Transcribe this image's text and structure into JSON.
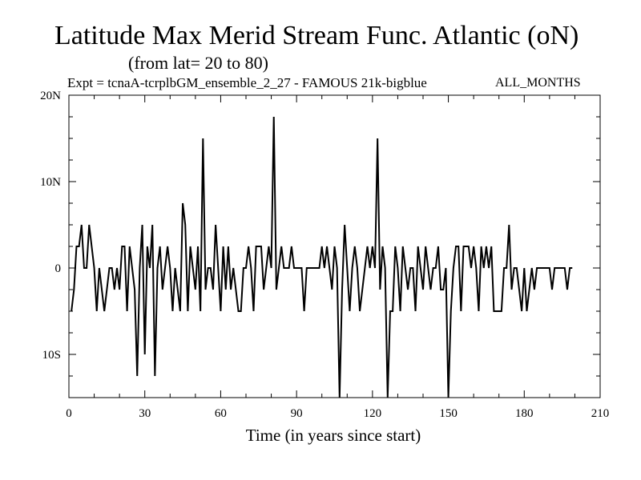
{
  "chart_data": {
    "type": "line",
    "title": "Latitude Max Merid Stream Func. Atlantic (oN)",
    "subtitle": "(from lat= 20 to 80)",
    "experiment": "Expt = tcnaA-tcrplbGM_ensemble_2_27 - FAMOUS 21k-bigblue",
    "months_label": "ALL_MONTHS",
    "xlabel": "Time (in years since start)",
    "ylabel": "",
    "xlim": [
      0,
      210
    ],
    "ylim": [
      -15,
      20
    ],
    "x_ticks": [
      0,
      30,
      60,
      90,
      120,
      150,
      180,
      210
    ],
    "x_tick_labels": [
      "0",
      "30",
      "60",
      "90",
      "120",
      "150",
      "180",
      "210"
    ],
    "y_ticks": [
      -10,
      0,
      10,
      20
    ],
    "y_tick_labels": [
      "10S",
      "0",
      "10N",
      "20N"
    ],
    "grid": false,
    "color": "#000000",
    "series": [
      {
        "x_start": 1,
        "x_step": 1,
        "values": [
          -5,
          -2.5,
          2.5,
          2.5,
          5,
          0,
          0,
          5,
          2.5,
          0,
          -5,
          0,
          -2.5,
          -5,
          -2.5,
          0,
          0,
          -2.5,
          0,
          -2.5,
          2.5,
          2.5,
          -5,
          2.5,
          0,
          -2.5,
          -12.5,
          0,
          5,
          -10,
          2.5,
          0,
          5,
          -12.5,
          0,
          2.5,
          -2.5,
          0,
          2.5,
          0,
          -5,
          0,
          -2.5,
          -5,
          7.5,
          5,
          -5,
          2.5,
          0,
          -2.5,
          2.5,
          -5,
          15,
          -2.5,
          0,
          0,
          -2.5,
          5,
          0,
          -5,
          2.5,
          -2.5,
          2.5,
          -2.5,
          0,
          -2.5,
          -5,
          -5,
          0,
          0,
          2.5,
          0,
          -5,
          2.5,
          2.5,
          2.5,
          -2.5,
          0,
          2.5,
          0,
          17.5,
          -2.5,
          0,
          2.5,
          0,
          0,
          0,
          2.5,
          0,
          0,
          0,
          0,
          -5,
          0,
          0,
          0,
          0,
          0,
          0,
          2.5,
          0,
          2.5,
          0,
          -2.5,
          2.5,
          0,
          -15,
          -2.5,
          5,
          0,
          -5,
          0,
          2.5,
          0,
          -5,
          -2.5,
          0,
          2.5,
          0,
          2.5,
          0,
          15,
          -2.5,
          2.5,
          0,
          -15,
          -5,
          -5,
          2.5,
          0,
          -5,
          2.5,
          0,
          -2.5,
          0,
          0,
          -5,
          2.5,
          0,
          -2.5,
          2.5,
          0,
          -2.5,
          0,
          0,
          2.5,
          -2.5,
          -2.5,
          0,
          -15,
          -5,
          0,
          2.5,
          2.5,
          -5,
          2.5,
          2.5,
          2.5,
          0,
          2.5,
          0,
          -5,
          2.5,
          0,
          2.5,
          0,
          2.5,
          -5,
          -5,
          -5,
          -5,
          0,
          0,
          5,
          -2.5,
          0,
          0,
          -2.5,
          -5,
          0,
          -5,
          -2.5,
          0,
          -2.5,
          0,
          0,
          0,
          0,
          0,
          0,
          -2.5,
          0,
          0,
          0,
          0,
          0,
          -2.5,
          0,
          0
        ]
      }
    ]
  }
}
